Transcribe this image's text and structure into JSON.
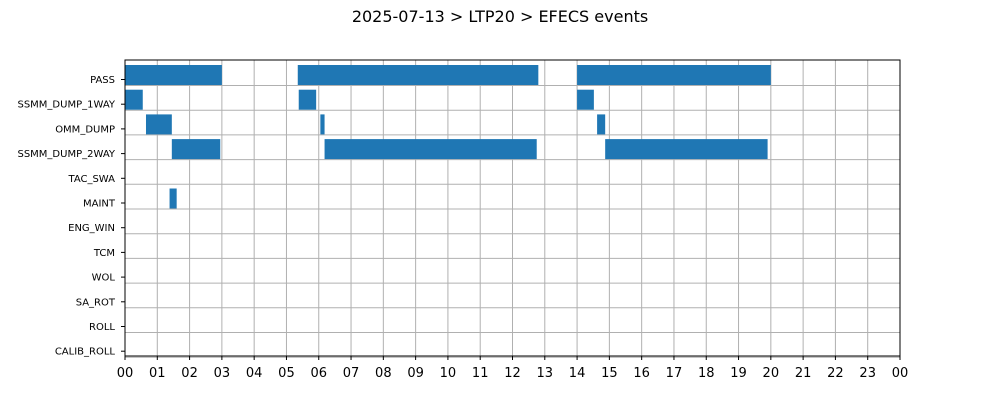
{
  "chart_data": {
    "type": "bar",
    "orientation": "horizontal",
    "title": "2025-07-13 > LTP20 > EFECS events",
    "xlabel": "",
    "ylabel": "",
    "xlim": [
      0,
      24
    ],
    "x_unit": "hours",
    "grid": true,
    "bar_color": "#1f77b4",
    "grid_color": "#b0b0b0",
    "categories": [
      "PASS",
      "SSMM_DUMP_1WAY",
      "OMM_DUMP",
      "SSMM_DUMP_2WAY",
      "TAC_SWA",
      "MAINT",
      "ENG_WIN",
      "TCM",
      "WOL",
      "SA_ROT",
      "ROLL",
      "CALIB_ROLL"
    ],
    "x_tick_labels": [
      "00",
      "01",
      "02",
      "03",
      "04",
      "05",
      "06",
      "07",
      "08",
      "09",
      "10",
      "11",
      "12",
      "13",
      "14",
      "15",
      "16",
      "17",
      "18",
      "19",
      "20",
      "21",
      "22",
      "23",
      "00"
    ],
    "series": [
      {
        "category": "PASS",
        "intervals": [
          [
            0.0,
            3.0
          ],
          [
            5.35,
            12.8
          ],
          [
            14.0,
            20.0
          ]
        ]
      },
      {
        "category": "SSMM_DUMP_1WAY",
        "intervals": [
          [
            0.0,
            0.55
          ],
          [
            5.38,
            5.92
          ],
          [
            14.0,
            14.52
          ]
        ]
      },
      {
        "category": "OMM_DUMP",
        "intervals": [
          [
            0.65,
            1.45
          ],
          [
            6.05,
            6.18
          ],
          [
            14.62,
            14.87
          ]
        ]
      },
      {
        "category": "SSMM_DUMP_2WAY",
        "intervals": [
          [
            1.45,
            2.95
          ],
          [
            6.18,
            12.75
          ],
          [
            14.87,
            19.9
          ]
        ]
      },
      {
        "category": "TAC_SWA",
        "intervals": []
      },
      {
        "category": "MAINT",
        "intervals": [
          [
            1.38,
            1.6
          ]
        ]
      },
      {
        "category": "ENG_WIN",
        "intervals": []
      },
      {
        "category": "TCM",
        "intervals": []
      },
      {
        "category": "WOL",
        "intervals": []
      },
      {
        "category": "SA_ROT",
        "intervals": []
      },
      {
        "category": "ROLL",
        "intervals": []
      },
      {
        "category": "CALIB_ROLL",
        "intervals": []
      }
    ]
  }
}
